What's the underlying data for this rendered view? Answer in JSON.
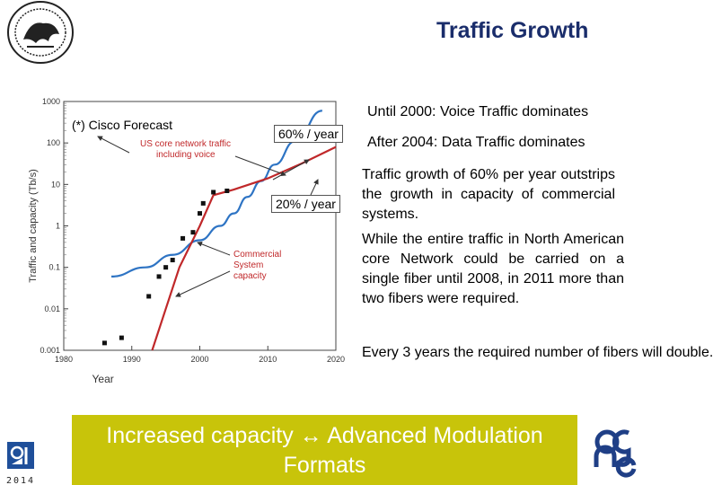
{
  "slide": {
    "title": "Traffic Growth",
    "forecast_label": "(*) Cisco Forecast",
    "rate_high": "60% / year",
    "rate_low": "20% / year",
    "bullets": [
      "Until 2000: Voice Traffic dominates",
      "After 2004: Data Traffic dominates",
      "Traffic growth of 60% per year outstrips the growth in capacity of commercial systems.",
      "While the entire traffic in North American core Network could be carried on a single fiber until 2008, in 2011 more than two fibers were required.",
      "Every 3 years the required number of fibers will double."
    ],
    "banner": "Increased capacity ↔ Advanced Modulation Formats",
    "logo_year": "2014",
    "colors": {
      "title": "#1a2d6b",
      "banner_bg": "#c8c40a",
      "traffic": "#2e74c4",
      "capacity": "#c0282a"
    }
  },
  "chart_data": {
    "type": "line",
    "title": "",
    "xlabel": "Year",
    "ylabel": "Traffic and capacity (Tb/s)",
    "xlim": [
      1980,
      2020
    ],
    "ylim": [
      0.001,
      1000
    ],
    "yscale": "log",
    "xticks": [
      "1980",
      "1990",
      "2000",
      "2010",
      "2020"
    ],
    "yticks": [
      "0.001",
      "0.01",
      "0.1",
      "1",
      "10",
      "100",
      "1000"
    ],
    "grid": false,
    "series": [
      {
        "name": "US core network traffic including voice",
        "style": "smooth-line",
        "x": [
          1987,
          1992,
          1996,
          2000,
          2003,
          2005,
          2007,
          2009,
          2011,
          2014,
          2018
        ],
        "y": [
          0.06,
          0.1,
          0.2,
          0.45,
          1.0,
          2.0,
          5.0,
          12,
          30,
          110,
          600
        ]
      },
      {
        "name": "Commercial System capacity (trend)",
        "style": "line",
        "x": [
          1993,
          1995,
          1997,
          2000,
          2002,
          2005,
          2010,
          2015,
          2020
        ],
        "y": [
          0.001,
          0.01,
          0.1,
          1,
          5.5,
          7.5,
          14,
          32,
          80
        ]
      },
      {
        "name": "Commercial System capacity",
        "style": "markers",
        "x": [
          1986,
          1988.5,
          1992.5,
          1994,
          1995,
          1996,
          1997.5,
          1999,
          2000,
          2000.5,
          2002,
          2004
        ],
        "y": [
          0.0015,
          0.002,
          0.02,
          0.06,
          0.1,
          0.15,
          0.5,
          0.7,
          2,
          3.5,
          6.5,
          7
        ]
      }
    ],
    "annotations": [
      "US core network traffic including voice",
      "Commercial System capacity"
    ]
  }
}
